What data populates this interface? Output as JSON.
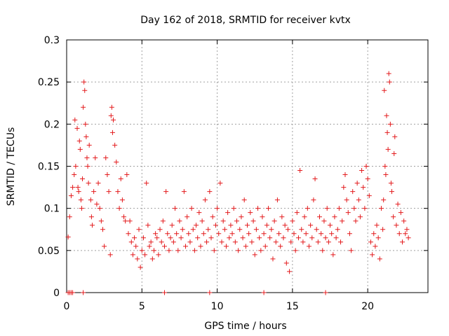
{
  "chart_data": {
    "type": "scatter",
    "title": "Day 162 of 2018, SRMTID for receiver kvtx",
    "xlabel": "GPS time / hours",
    "ylabel": "SRMTID / TECUs",
    "xlim": [
      0,
      24
    ],
    "ylim": [
      0,
      0.3
    ],
    "xticks": [
      0,
      5,
      10,
      15,
      20
    ],
    "xtick_labels": [
      "0",
      "5",
      "10",
      "15",
      "20"
    ],
    "yticks": [
      0,
      0.05,
      0.1,
      0.15,
      0.2,
      0.25,
      0.3
    ],
    "ytick_labels": [
      "0",
      "0.05",
      "0.1",
      "0.15",
      "0.2",
      "0.25",
      "0.3"
    ],
    "grid": true,
    "marker": "plus",
    "color": "#e31a1c",
    "series": [
      {
        "name": "SRMTID",
        "points": [
          [
            0.1,
            0.066
          ],
          [
            0.2,
            0.09
          ],
          [
            0.3,
            0.115
          ],
          [
            0.4,
            0.125
          ],
          [
            0.5,
            0.14
          ],
          [
            0.55,
            0.205
          ],
          [
            0.6,
            0.15
          ],
          [
            0.7,
            0.195
          ],
          [
            0.75,
            0.125
          ],
          [
            0.8,
            0.12
          ],
          [
            0.85,
            0.18
          ],
          [
            0.9,
            0.17
          ],
          [
            0.95,
            0.11
          ],
          [
            1.0,
            0.1
          ],
          [
            1.05,
            0.135
          ],
          [
            1.1,
            0.22
          ],
          [
            1.15,
            0.25
          ],
          [
            1.2,
            0.24
          ],
          [
            1.25,
            0.2
          ],
          [
            1.3,
            0.185
          ],
          [
            1.35,
            0.16
          ],
          [
            1.4,
            0.15
          ],
          [
            1.45,
            0.13
          ],
          [
            1.5,
            0.175
          ],
          [
            1.6,
            0.11
          ],
          [
            1.65,
            0.09
          ],
          [
            1.7,
            0.08
          ],
          [
            1.8,
            0.12
          ],
          [
            1.9,
            0.16
          ],
          [
            2.0,
            0.105
          ],
          [
            2.1,
            0.13
          ],
          [
            2.2,
            0.1
          ],
          [
            2.3,
            0.085
          ],
          [
            2.4,
            0.075
          ],
          [
            2.5,
            0.055
          ],
          [
            2.6,
            0.16
          ],
          [
            2.7,
            0.14
          ],
          [
            2.8,
            0.12
          ],
          [
            2.9,
            0.045
          ],
          [
            2.95,
            0.21
          ],
          [
            3.0,
            0.22
          ],
          [
            3.05,
            0.19
          ],
          [
            3.1,
            0.205
          ],
          [
            3.2,
            0.175
          ],
          [
            3.3,
            0.155
          ],
          [
            3.4,
            0.12
          ],
          [
            3.5,
            0.1
          ],
          [
            3.6,
            0.135
          ],
          [
            3.7,
            0.11
          ],
          [
            3.8,
            0.09
          ],
          [
            3.9,
            0.085
          ],
          [
            4.0,
            0.14
          ],
          [
            4.1,
            0.07
          ],
          [
            4.2,
            0.085
          ],
          [
            4.3,
            0.06
          ],
          [
            4.4,
            0.045
          ],
          [
            4.5,
            0.065
          ],
          [
            4.6,
            0.055
          ],
          [
            4.7,
            0.04
          ],
          [
            4.8,
            0.075
          ],
          [
            4.9,
            0.03
          ],
          [
            5.0,
            0.05
          ],
          [
            5.1,
            0.065
          ],
          [
            5.2,
            0.045
          ],
          [
            5.3,
            0.13
          ],
          [
            5.4,
            0.08
          ],
          [
            5.5,
            0.055
          ],
          [
            5.6,
            0.06
          ],
          [
            5.7,
            0.04
          ],
          [
            5.8,
            0.05
          ],
          [
            5.9,
            0.07
          ],
          [
            6.0,
            0.065
          ],
          [
            6.1,
            0.045
          ],
          [
            6.2,
            0.075
          ],
          [
            6.3,
            0.06
          ],
          [
            6.4,
            0.085
          ],
          [
            6.5,
            0.055
          ],
          [
            6.6,
            0.12
          ],
          [
            6.7,
            0.07
          ],
          [
            6.8,
            0.05
          ],
          [
            6.9,
            0.065
          ],
          [
            7.0,
            0.08
          ],
          [
            7.1,
            0.06
          ],
          [
            7.2,
            0.1
          ],
          [
            7.3,
            0.07
          ],
          [
            7.4,
            0.05
          ],
          [
            7.5,
            0.085
          ],
          [
            7.6,
            0.065
          ],
          [
            7.7,
            0.075
          ],
          [
            7.8,
            0.12
          ],
          [
            7.9,
            0.055
          ],
          [
            8.0,
            0.09
          ],
          [
            8.1,
            0.07
          ],
          [
            8.2,
            0.06
          ],
          [
            8.3,
            0.1
          ],
          [
            8.4,
            0.075
          ],
          [
            8.5,
            0.05
          ],
          [
            8.6,
            0.08
          ],
          [
            8.7,
            0.065
          ],
          [
            8.8,
            0.095
          ],
          [
            8.9,
            0.055
          ],
          [
            9.0,
            0.085
          ],
          [
            9.1,
            0.07
          ],
          [
            9.2,
            0.11
          ],
          [
            9.3,
            0.06
          ],
          [
            9.4,
            0.075
          ],
          [
            9.5,
            0.12
          ],
          [
            9.6,
            0.065
          ],
          [
            9.7,
            0.09
          ],
          [
            9.8,
            0.05
          ],
          [
            9.9,
            0.08
          ],
          [
            10.0,
            0.1
          ],
          [
            10.1,
            0.07
          ],
          [
            10.2,
            0.13
          ],
          [
            10.3,
            0.06
          ],
          [
            10.4,
            0.085
          ],
          [
            10.5,
            0.075
          ],
          [
            10.6,
            0.055
          ],
          [
            10.7,
            0.095
          ],
          [
            10.8,
            0.065
          ],
          [
            10.9,
            0.08
          ],
          [
            11.0,
            0.07
          ],
          [
            11.1,
            0.1
          ],
          [
            11.2,
            0.06
          ],
          [
            11.3,
            0.085
          ],
          [
            11.4,
            0.05
          ],
          [
            11.5,
            0.075
          ],
          [
            11.6,
            0.09
          ],
          [
            11.7,
            0.065
          ],
          [
            11.8,
            0.11
          ],
          [
            11.9,
            0.055
          ],
          [
            12.0,
            0.08
          ],
          [
            12.1,
            0.07
          ],
          [
            12.2,
            0.095
          ],
          [
            12.3,
            0.06
          ],
          [
            12.4,
            0.085
          ],
          [
            12.5,
            0.045
          ],
          [
            12.6,
            0.075
          ],
          [
            12.7,
            0.1
          ],
          [
            12.8,
            0.065
          ],
          [
            12.9,
            0.05
          ],
          [
            13.0,
            0.09
          ],
          [
            13.1,
            0.07
          ],
          [
            13.2,
            0.055
          ],
          [
            13.3,
            0.08
          ],
          [
            13.4,
            0.1
          ],
          [
            13.5,
            0.065
          ],
          [
            13.6,
            0.075
          ],
          [
            13.7,
            0.04
          ],
          [
            13.8,
            0.085
          ],
          [
            13.9,
            0.06
          ],
          [
            14.0,
            0.11
          ],
          [
            14.1,
            0.07
          ],
          [
            14.2,
            0.055
          ],
          [
            14.3,
            0.09
          ],
          [
            14.4,
            0.065
          ],
          [
            14.5,
            0.08
          ],
          [
            14.6,
            0.035
          ],
          [
            14.7,
            0.075
          ],
          [
            14.8,
            0.025
          ],
          [
            14.9,
            0.06
          ],
          [
            15.0,
            0.085
          ],
          [
            15.1,
            0.07
          ],
          [
            15.2,
            0.05
          ],
          [
            15.3,
            0.095
          ],
          [
            15.4,
            0.065
          ],
          [
            15.5,
            0.145
          ],
          [
            15.6,
            0.075
          ],
          [
            15.7,
            0.06
          ],
          [
            15.8,
            0.09
          ],
          [
            15.9,
            0.07
          ],
          [
            16.0,
            0.1
          ],
          [
            16.1,
            0.055
          ],
          [
            16.2,
            0.08
          ],
          [
            16.3,
            0.065
          ],
          [
            16.4,
            0.11
          ],
          [
            16.5,
            0.135
          ],
          [
            16.6,
            0.075
          ],
          [
            16.7,
            0.06
          ],
          [
            16.8,
            0.09
          ],
          [
            16.9,
            0.07
          ],
          [
            17.0,
            0.05
          ],
          [
            17.1,
            0.085
          ],
          [
            17.2,
            0.065
          ],
          [
            17.3,
            0.1
          ],
          [
            17.4,
            0.06
          ],
          [
            17.5,
            0.08
          ],
          [
            17.6,
            0.07
          ],
          [
            17.7,
            0.045
          ],
          [
            17.8,
            0.09
          ],
          [
            17.9,
            0.065
          ],
          [
            18.0,
            0.075
          ],
          [
            18.1,
            0.1
          ],
          [
            18.2,
            0.06
          ],
          [
            18.3,
            0.085
          ],
          [
            18.4,
            0.125
          ],
          [
            18.5,
            0.14
          ],
          [
            18.6,
            0.11
          ],
          [
            18.7,
            0.095
          ],
          [
            18.8,
            0.07
          ],
          [
            18.9,
            0.05
          ],
          [
            19.0,
            0.12
          ],
          [
            19.1,
            0.1
          ],
          [
            19.2,
            0.085
          ],
          [
            19.3,
            0.13
          ],
          [
            19.4,
            0.11
          ],
          [
            19.5,
            0.09
          ],
          [
            19.6,
            0.145
          ],
          [
            19.7,
            0.125
          ],
          [
            19.8,
            0.1
          ],
          [
            19.9,
            0.15
          ],
          [
            20.0,
            0.135
          ],
          [
            20.1,
            0.115
          ],
          [
            20.2,
            0.06
          ],
          [
            20.3,
            0.045
          ],
          [
            20.4,
            0.07
          ],
          [
            20.5,
            0.055
          ],
          [
            20.6,
            0.08
          ],
          [
            20.7,
            0.065
          ],
          [
            20.8,
            0.04
          ],
          [
            20.9,
            0.1
          ],
          [
            21.0,
            0.075
          ],
          [
            21.05,
            0.11
          ],
          [
            21.1,
            0.24
          ],
          [
            21.15,
            0.15
          ],
          [
            21.2,
            0.14
          ],
          [
            21.25,
            0.21
          ],
          [
            21.3,
            0.19
          ],
          [
            21.35,
            0.17
          ],
          [
            21.4,
            0.26
          ],
          [
            21.45,
            0.25
          ],
          [
            21.5,
            0.2
          ],
          [
            21.55,
            0.13
          ],
          [
            21.6,
            0.12
          ],
          [
            21.7,
            0.09
          ],
          [
            21.75,
            0.165
          ],
          [
            21.8,
            0.185
          ],
          [
            21.9,
            0.08
          ],
          [
            22.0,
            0.105
          ],
          [
            22.1,
            0.07
          ],
          [
            22.2,
            0.095
          ],
          [
            22.3,
            0.06
          ],
          [
            22.4,
            0.085
          ],
          [
            22.5,
            0.07
          ],
          [
            22.6,
            0.075
          ],
          [
            22.7,
            0.065
          ],
          [
            0.1,
            0.0
          ],
          [
            0.2,
            0.0
          ],
          [
            0.3,
            0.0
          ],
          [
            0.4,
            0.0
          ],
          [
            1.1,
            0.0
          ],
          [
            6.5,
            0.0
          ],
          [
            9.5,
            0.0
          ],
          [
            13.1,
            0.0
          ],
          [
            17.2,
            0.0
          ]
        ]
      }
    ]
  }
}
